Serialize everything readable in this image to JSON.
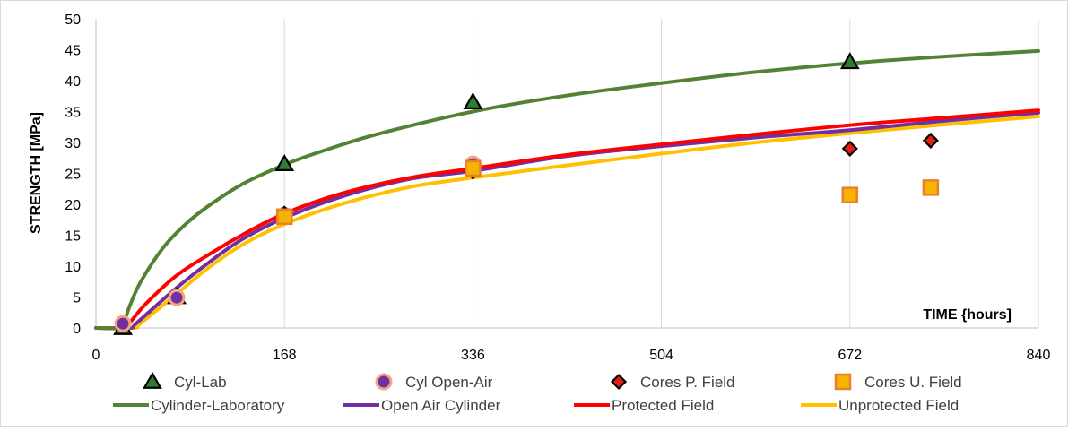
{
  "chart_data": {
    "type": "line",
    "title": "",
    "xlabel": "TIME {hours]",
    "ylabel": "STRENGTH [MPa]",
    "xlim": [
      0,
      840
    ],
    "ylim": [
      0,
      50
    ],
    "x_ticks": [
      0,
      168,
      336,
      504,
      672,
      840
    ],
    "y_ticks": [
      0,
      5,
      10,
      15,
      20,
      25,
      30,
      35,
      40,
      45,
      50
    ],
    "grid": "vertical lines at x ticks",
    "legend_position": "bottom",
    "point_series": [
      {
        "name": "Cyl-Lab",
        "marker": "triangle",
        "color": "#2e7d32",
        "points": [
          [
            24,
            0
          ],
          [
            72,
            5
          ],
          [
            168,
            26.5
          ],
          [
            336,
            36.5
          ],
          [
            672,
            43
          ]
        ]
      },
      {
        "name": "Cyl Open-Air",
        "marker": "circle",
        "color": "#7030a0",
        "points": [
          [
            24,
            0.7
          ],
          [
            72,
            4.9
          ],
          [
            168,
            18.2
          ],
          [
            336,
            26.5
          ]
        ]
      },
      {
        "name": "Cores P. Field",
        "marker": "diamond",
        "color": "#e02010",
        "points": [
          [
            168,
            18.5
          ],
          [
            336,
            25.3
          ],
          [
            672,
            29
          ],
          [
            744,
            30.3
          ]
        ]
      },
      {
        "name": "Cores U. Field",
        "marker": "square",
        "color": "#f4b400",
        "points": [
          [
            168,
            18
          ],
          [
            336,
            25.8
          ],
          [
            672,
            21.5
          ],
          [
            744,
            22.7
          ]
        ]
      }
    ],
    "curve_series": [
      {
        "name": "Cylinder-Laboratory",
        "color": "#548235",
        "points": [
          [
            0,
            0
          ],
          [
            22,
            0
          ],
          [
            24,
            0.3
          ],
          [
            30,
            3.5
          ],
          [
            40,
            7.5
          ],
          [
            60,
            13
          ],
          [
            80,
            16.8
          ],
          [
            100,
            19.7
          ],
          [
            130,
            23.2
          ],
          [
            168,
            26.4
          ],
          [
            200,
            28.5
          ],
          [
            250,
            31.3
          ],
          [
            336,
            35
          ],
          [
            420,
            37.6
          ],
          [
            504,
            39.6
          ],
          [
            588,
            41.4
          ],
          [
            672,
            42.8
          ],
          [
            756,
            43.9
          ],
          [
            840,
            44.8
          ]
        ]
      },
      {
        "name": "Open Air Cylinder",
        "color": "#7030a0",
        "points": [
          [
            0,
            0
          ],
          [
            30,
            0
          ],
          [
            35,
            0.6
          ],
          [
            50,
            3
          ],
          [
            72,
            6.5
          ],
          [
            100,
            10.5
          ],
          [
            130,
            14.3
          ],
          [
            168,
            17.8
          ],
          [
            220,
            21.3
          ],
          [
            280,
            24.1
          ],
          [
            336,
            25.4
          ],
          [
            420,
            27.8
          ],
          [
            504,
            29.4
          ],
          [
            588,
            30.8
          ],
          [
            672,
            32
          ],
          [
            756,
            33.5
          ],
          [
            840,
            34.8
          ]
        ]
      },
      {
        "name": "Protected Field",
        "color": "#ff0000",
        "points": [
          [
            0,
            0
          ],
          [
            26,
            0
          ],
          [
            30,
            0.8
          ],
          [
            45,
            4
          ],
          [
            72,
            8.5
          ],
          [
            100,
            11.8
          ],
          [
            130,
            15
          ],
          [
            168,
            18.5
          ],
          [
            220,
            21.8
          ],
          [
            280,
            24.3
          ],
          [
            336,
            25.8
          ],
          [
            420,
            28
          ],
          [
            504,
            29.7
          ],
          [
            588,
            31.3
          ],
          [
            672,
            32.8
          ],
          [
            756,
            34
          ],
          [
            840,
            35.2
          ]
        ]
      },
      {
        "name": "Unprotected Field",
        "color": "#ffc000",
        "points": [
          [
            0,
            0
          ],
          [
            34,
            0
          ],
          [
            38,
            0.5
          ],
          [
            55,
            3
          ],
          [
            72,
            5.5
          ],
          [
            100,
            9.7
          ],
          [
            130,
            13.4
          ],
          [
            168,
            16.8
          ],
          [
            220,
            20.1
          ],
          [
            280,
            22.8
          ],
          [
            336,
            24.3
          ],
          [
            420,
            26.3
          ],
          [
            504,
            28.2
          ],
          [
            588,
            30
          ],
          [
            672,
            31.5
          ],
          [
            756,
            32.9
          ],
          [
            840,
            34.2
          ]
        ]
      }
    ]
  }
}
